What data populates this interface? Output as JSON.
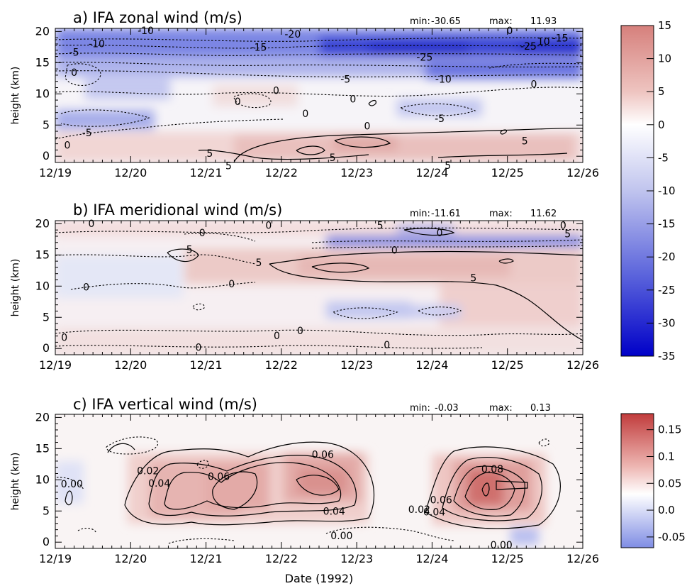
{
  "chart_data": [
    {
      "type": "heatmap",
      "title": "a) IFA zonal wind  (m/s)",
      "stats": {
        "min_label": "min:",
        "min": "-30.65",
        "max_label": "max:",
        "max": "11.93"
      },
      "ylabel": "height (km)",
      "x_ticks": [
        "12/19",
        "12/20",
        "12/21",
        "12/22",
        "12/23",
        "12/24",
        "12/25",
        "12/26"
      ],
      "y_ticks": [
        "0",
        "5",
        "10",
        "15",
        "20"
      ],
      "xlim": [
        0,
        7
      ],
      "ylim": [
        -1,
        20.5
      ],
      "colorbar": {
        "ticks": [
          "15",
          "10",
          "5",
          "0",
          "-5",
          "-10",
          "-15",
          "-20",
          "-25",
          "-30",
          "-35"
        ],
        "range": [
          -35,
          15
        ]
      },
      "contour_labels": [
        {
          "text": "-10",
          "x": 1.2,
          "y": 19.6
        },
        {
          "text": "-10",
          "x": 0.55,
          "y": 17.5
        },
        {
          "text": "-5",
          "x": 0.25,
          "y": 16.1
        },
        {
          "text": "-20",
          "x": 3.15,
          "y": 19.0
        },
        {
          "text": "-15",
          "x": 2.7,
          "y": 16.9
        },
        {
          "text": "-25",
          "x": 4.9,
          "y": 15.3
        },
        {
          "text": "-25",
          "x": 6.28,
          "y": 17.1
        },
        {
          "text": "10",
          "x": 6.48,
          "y": 17.8
        },
        {
          "text": "-15",
          "x": 6.7,
          "y": 18.4
        },
        {
          "text": "0",
          "x": 6.03,
          "y": 19.6
        },
        {
          "text": "-5",
          "x": 3.85,
          "y": 11.8
        },
        {
          "text": "-10",
          "x": 5.15,
          "y": 11.8
        },
        {
          "text": "0",
          "x": 0.25,
          "y": 12.9
        },
        {
          "text": "0",
          "x": 2.93,
          "y": 10.0
        },
        {
          "text": "0",
          "x": 2.42,
          "y": 8.2
        },
        {
          "text": "0",
          "x": 3.95,
          "y": 8.6
        },
        {
          "text": "0",
          "x": 3.32,
          "y": 6.3
        },
        {
          "text": "0",
          "x": 4.14,
          "y": 4.3
        },
        {
          "text": "-5",
          "x": 5.1,
          "y": 5.5
        },
        {
          "text": "0",
          "x": 6.35,
          "y": 11.0
        },
        {
          "text": "-5",
          "x": 0.42,
          "y": 3.2
        },
        {
          "text": "0",
          "x": 0.16,
          "y": 1.2
        },
        {
          "text": "5",
          "x": 2.05,
          "y": -0.1
        },
        {
          "text": "5",
          "x": 2.3,
          "y": -2.1
        },
        {
          "text": "5",
          "x": 3.68,
          "y": -0.8
        },
        {
          "text": "5",
          "x": 6.23,
          "y": 1.9
        },
        {
          "text": "5",
          "x": 5.21,
          "y": -2.0
        }
      ]
    },
    {
      "type": "heatmap",
      "title": "b) IFA meridional wind (m/s)",
      "stats": {
        "min_label": "min:",
        "min": "-11.61",
        "max_label": "max:",
        "max": "11.62"
      },
      "ylabel": "height (km)",
      "x_ticks": [
        "12/19",
        "12/20",
        "12/21",
        "12/22",
        "12/23",
        "12/24",
        "12/25",
        "12/26"
      ],
      "y_ticks": [
        "0",
        "5",
        "10",
        "15",
        "20"
      ],
      "xlim": [
        0,
        7
      ],
      "ylim": [
        -1,
        20.5
      ],
      "colorbar": {
        "ticks": [
          "15",
          "10",
          "5",
          "0",
          "-5",
          "-10",
          "-15",
          "-20",
          "-25",
          "-30",
          "-35"
        ],
        "range": [
          -35,
          15
        ]
      },
      "contour_labels": [
        {
          "text": "0",
          "x": 0.48,
          "y": 19.5
        },
        {
          "text": "0",
          "x": 1.95,
          "y": 18.0
        },
        {
          "text": "0",
          "x": 2.83,
          "y": 19.2
        },
        {
          "text": "5",
          "x": 4.31,
          "y": 19.2
        },
        {
          "text": "0",
          "x": 5.1,
          "y": 18.0
        },
        {
          "text": "0",
          "x": 6.74,
          "y": 19.2
        },
        {
          "text": "5",
          "x": 6.8,
          "y": 17.8
        },
        {
          "text": "0",
          "x": 4.5,
          "y": 15.2
        },
        {
          "text": "5",
          "x": 1.78,
          "y": 15.3
        },
        {
          "text": "5",
          "x": 2.7,
          "y": 13.2
        },
        {
          "text": "5",
          "x": 5.55,
          "y": 10.8
        },
        {
          "text": "0",
          "x": 0.41,
          "y": 9.3
        },
        {
          "text": "0",
          "x": 2.34,
          "y": 9.8
        },
        {
          "text": "0",
          "x": 0.12,
          "y": 1.2
        },
        {
          "text": "0",
          "x": 1.9,
          "y": -0.4
        },
        {
          "text": "0",
          "x": 2.94,
          "y": 1.5
        },
        {
          "text": "0",
          "x": 3.25,
          "y": 2.3
        },
        {
          "text": "0",
          "x": 4.4,
          "y": 0.0
        }
      ]
    },
    {
      "type": "heatmap",
      "title": "c) IFA vertical wind  (m/s)",
      "stats": {
        "min_label": "min:",
        "min": "-0.03",
        "max_label": "max:",
        "max": "0.13"
      },
      "ylabel": "height (km)",
      "xlabel": "Date (1992)",
      "x_ticks": [
        "12/19",
        "12/20",
        "12/21",
        "12/22",
        "12/23",
        "12/24",
        "12/25",
        "12/26"
      ],
      "y_ticks": [
        "0",
        "5",
        "10",
        "15",
        "20"
      ],
      "xlim": [
        0,
        7
      ],
      "ylim": [
        -1,
        20.5
      ],
      "colorbar": {
        "ticks": [
          "0.15",
          "0.1",
          "0.05",
          "0.0",
          "-0.05"
        ],
        "range": [
          -0.07,
          0.18
        ]
      },
      "contour_labels": [
        {
          "text": "0.00",
          "x": 0.22,
          "y": 8.8
        },
        {
          "text": "0.02",
          "x": 1.23,
          "y": 10.9
        },
        {
          "text": "0.04",
          "x": 1.38,
          "y": 8.9
        },
        {
          "text": "0.06",
          "x": 2.17,
          "y": 10.0
        },
        {
          "text": "0.06",
          "x": 3.55,
          "y": 13.5
        },
        {
          "text": "0.04",
          "x": 3.7,
          "y": 4.4
        },
        {
          "text": "0.00",
          "x": 3.8,
          "y": 0.5
        },
        {
          "text": "0.02",
          "x": 4.83,
          "y": 4.7
        },
        {
          "text": "0.04",
          "x": 5.03,
          "y": 4.3
        },
        {
          "text": "0.06",
          "x": 5.12,
          "y": 6.2
        },
        {
          "text": "0.08",
          "x": 5.8,
          "y": 11.2
        },
        {
          "text": "0.00",
          "x": 5.92,
          "y": -1.0
        }
      ]
    }
  ]
}
